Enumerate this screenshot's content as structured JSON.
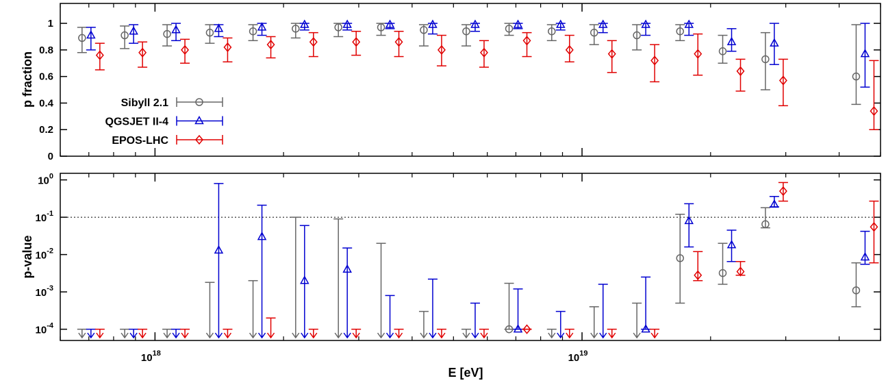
{
  "chart_data": [
    {
      "type": "errorbar",
      "ylabel": "p fraction",
      "ylim": [
        0,
        1.15
      ],
      "yticks": [
        0,
        0.2,
        0.4,
        0.6,
        0.8,
        1
      ],
      "legend": "lower-left",
      "x": [
        7.08e+17,
        8.91e+17,
        1.12e+18,
        1.41e+18,
        1.78e+18,
        2.24e+18,
        2.82e+18,
        3.55e+18,
        4.47e+18,
        5.62e+18,
        7.08e+18,
        8.91e+18,
        1.12e+19,
        1.41e+19,
        1.78e+19,
        2.24e+19,
        2.82e+19,
        4.6e+19
      ],
      "series": [
        {
          "name": "Sibyll 2.1",
          "color": "#666666",
          "marker": "circle",
          "values": [
            0.89,
            0.91,
            0.92,
            0.93,
            0.94,
            0.96,
            0.97,
            0.97,
            0.95,
            0.94,
            0.96,
            0.94,
            0.93,
            0.91,
            0.94,
            0.79,
            0.73,
            0.6
          ],
          "upper": [
            0.97,
            0.98,
            0.99,
            0.99,
            0.99,
            1.0,
            1.0,
            1.0,
            0.99,
            0.99,
            1.0,
            0.99,
            0.99,
            0.99,
            0.99,
            0.91,
            0.93,
            0.99
          ],
          "lower": [
            0.78,
            0.81,
            0.83,
            0.85,
            0.87,
            0.89,
            0.9,
            0.91,
            0.83,
            0.83,
            0.91,
            0.87,
            0.84,
            0.8,
            0.87,
            0.7,
            0.5,
            0.39
          ]
        },
        {
          "name": "QGSJET II-4",
          "color": "#0000d0",
          "marker": "triangle",
          "values": [
            0.91,
            0.94,
            0.95,
            0.96,
            0.97,
            0.99,
            0.99,
            0.99,
            0.99,
            0.99,
            0.99,
            0.99,
            0.99,
            0.99,
            0.99,
            0.86,
            0.85,
            0.77
          ],
          "upper": [
            0.97,
            0.99,
            1.0,
            0.99,
            1.0,
            1.0,
            1.0,
            1.0,
            1.0,
            1.0,
            1.0,
            1.0,
            1.0,
            1.0,
            1.0,
            0.96,
            1.0,
            1.0
          ],
          "lower": [
            0.8,
            0.85,
            0.87,
            0.9,
            0.91,
            0.95,
            0.95,
            0.96,
            0.92,
            0.94,
            0.96,
            0.95,
            0.93,
            0.91,
            0.91,
            0.79,
            0.69,
            0.52
          ]
        },
        {
          "name": "EPOS-LHC",
          "color": "#e00000",
          "marker": "diamond",
          "values": [
            0.76,
            0.78,
            0.8,
            0.82,
            0.84,
            0.86,
            0.86,
            0.86,
            0.8,
            0.78,
            0.87,
            0.8,
            0.77,
            0.72,
            0.77,
            0.64,
            0.57,
            0.34
          ],
          "upper": [
            0.85,
            0.86,
            0.88,
            0.89,
            0.9,
            0.93,
            0.94,
            0.94,
            0.91,
            0.87,
            0.93,
            0.91,
            0.87,
            0.84,
            0.92,
            0.73,
            0.73,
            0.72
          ],
          "lower": [
            0.65,
            0.67,
            0.7,
            0.71,
            0.74,
            0.75,
            0.76,
            0.75,
            0.68,
            0.67,
            0.75,
            0.71,
            0.63,
            0.56,
            0.61,
            0.49,
            0.38,
            0.2
          ]
        }
      ]
    },
    {
      "type": "errorbar",
      "ylabel": "p-value",
      "xlabel": "E [eV]",
      "log_y": true,
      "log_x": true,
      "xlim": [
        6e+17,
        5e+19
      ],
      "xticks": [
        {
          "value": 1e+18,
          "label": "10",
          "sup": "18"
        },
        {
          "value": 1e+19,
          "label": "10",
          "sup": "19"
        }
      ],
      "ylim": [
        5e-05,
        1.5
      ],
      "yticks": [
        {
          "value": 0.0001,
          "label": "10",
          "sup": "-4"
        },
        {
          "value": 0.001,
          "label": "10",
          "sup": "-3"
        },
        {
          "value": 0.01,
          "label": "10",
          "sup": "-2"
        },
        {
          "value": 0.1,
          "label": "10",
          "sup": "-1"
        },
        {
          "value": 1,
          "label": "10",
          "sup": "0"
        }
      ],
      "reference_line": 0.1,
      "series": [
        {
          "name": "Sibyll 2.1",
          "color": "#666666",
          "marker": "circle",
          "values": [
            null,
            null,
            null,
            null,
            null,
            null,
            null,
            null,
            null,
            null,
            0.0001,
            null,
            null,
            null,
            0.008,
            0.0032,
            0.065,
            0.0011
          ],
          "upper": [
            0.0001,
            0.0001,
            0.0001,
            0.0018,
            0.002,
            0.1,
            0.09,
            0.02,
            0.0003,
            0.0001,
            0.0017,
            0.0001,
            0.0004,
            0.0005,
            0.12,
            0.02,
            0.18,
            0.006
          ],
          "lower": [
            null,
            null,
            null,
            null,
            null,
            null,
            null,
            null,
            null,
            null,
            0.0001,
            null,
            null,
            null,
            0.0005,
            0.0016,
            0.052,
            0.0004
          ]
        },
        {
          "name": "QGSJET II-4",
          "color": "#0000d0",
          "marker": "triangle",
          "values": [
            null,
            null,
            null,
            0.013,
            0.03,
            0.002,
            0.004,
            null,
            null,
            null,
            0.0001,
            null,
            null,
            0.0001,
            0.08,
            0.018,
            0.22,
            0.0085
          ],
          "upper": [
            0.0001,
            0.0001,
            0.0001,
            0.8,
            0.21,
            0.06,
            0.015,
            0.0008,
            0.0022,
            0.0005,
            0.0012,
            0.0003,
            0.0016,
            0.0025,
            0.23,
            0.045,
            0.36,
            0.042
          ],
          "lower": [
            null,
            null,
            null,
            null,
            null,
            null,
            null,
            null,
            null,
            null,
            0.0001,
            null,
            null,
            0.0001,
            0.016,
            0.0065,
            0.19,
            0.0055
          ]
        },
        {
          "name": "EPOS-LHC",
          "color": "#e00000",
          "marker": "diamond",
          "values": [
            null,
            null,
            null,
            null,
            null,
            null,
            null,
            null,
            null,
            null,
            0.0001,
            null,
            null,
            null,
            0.0028,
            0.0035,
            0.5,
            0.055
          ],
          "upper": [
            0.0001,
            0.0001,
            0.0001,
            0.0001,
            0.0002,
            0.0001,
            0.0001,
            0.0001,
            0.0001,
            0.0001,
            0.0001,
            0.0001,
            0.0001,
            0.0001,
            0.012,
            0.0065,
            0.85,
            0.27
          ],
          "lower": [
            null,
            null,
            null,
            null,
            null,
            null,
            null,
            null,
            null,
            null,
            0.0001,
            null,
            null,
            null,
            0.002,
            0.0028,
            0.27,
            0.006
          ]
        }
      ]
    }
  ]
}
